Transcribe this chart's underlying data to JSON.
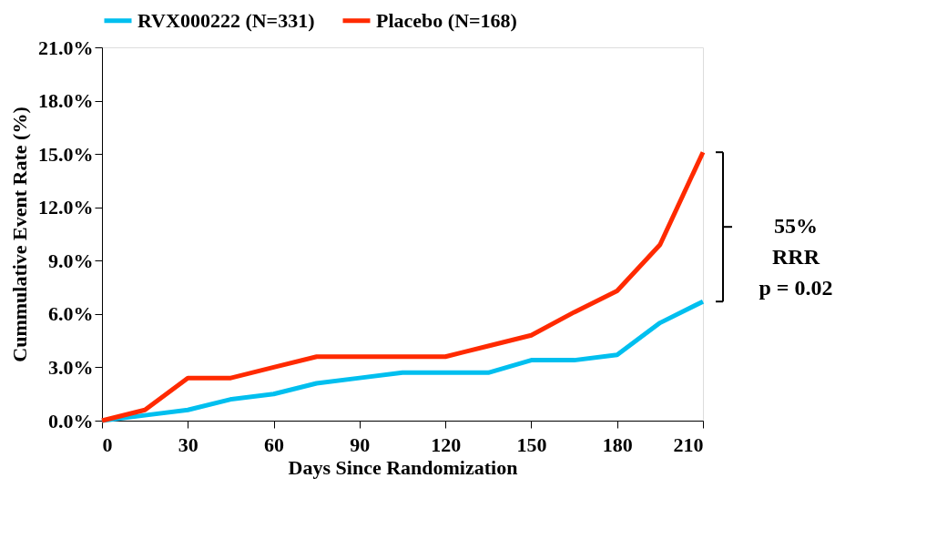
{
  "chart_data": {
    "type": "line",
    "xlabel": "Days Since Randomization",
    "ylabel": "Cummulative Event Rate (%)",
    "x": [
      0,
      15,
      30,
      45,
      60,
      75,
      90,
      105,
      120,
      135,
      150,
      165,
      180,
      195,
      210
    ],
    "series": [
      {
        "name": "RVX000222 (N=331)",
        "color": "#00bfef",
        "values": [
          0,
          0.3,
          0.6,
          1.2,
          1.5,
          2.1,
          2.4,
          2.7,
          2.7,
          2.7,
          3.4,
          3.4,
          3.7,
          5.5,
          6.7
        ]
      },
      {
        "name": "Placebo (N=168)",
        "color": "#ff2a00",
        "values": [
          0,
          0.6,
          2.4,
          2.4,
          3.0,
          3.6,
          3.6,
          3.6,
          3.6,
          4.2,
          4.8,
          6.1,
          7.3,
          9.9,
          15.1
        ]
      }
    ],
    "xlim": [
      0,
      210
    ],
    "xticks": [
      0,
      30,
      60,
      90,
      120,
      150,
      180,
      210
    ],
    "ylim": [
      0,
      21
    ],
    "yticks": [
      {
        "value": 0,
        "label": "0.0%"
      },
      {
        "value": 3,
        "label": "3.0%"
      },
      {
        "value": 6,
        "label": "6.0%"
      },
      {
        "value": 9,
        "label": "9.0%"
      },
      {
        "value": 12,
        "label": "12.0%"
      },
      {
        "value": 15,
        "label": "15.0%"
      },
      {
        "value": 18,
        "label": "18.0%"
      },
      {
        "value": 21,
        "label": "21.0%"
      }
    ],
    "annotations": [
      "55%\nRRR\np = 0.02"
    ],
    "legend": "top",
    "grid": false,
    "marker": "none",
    "line_style": "solid"
  }
}
